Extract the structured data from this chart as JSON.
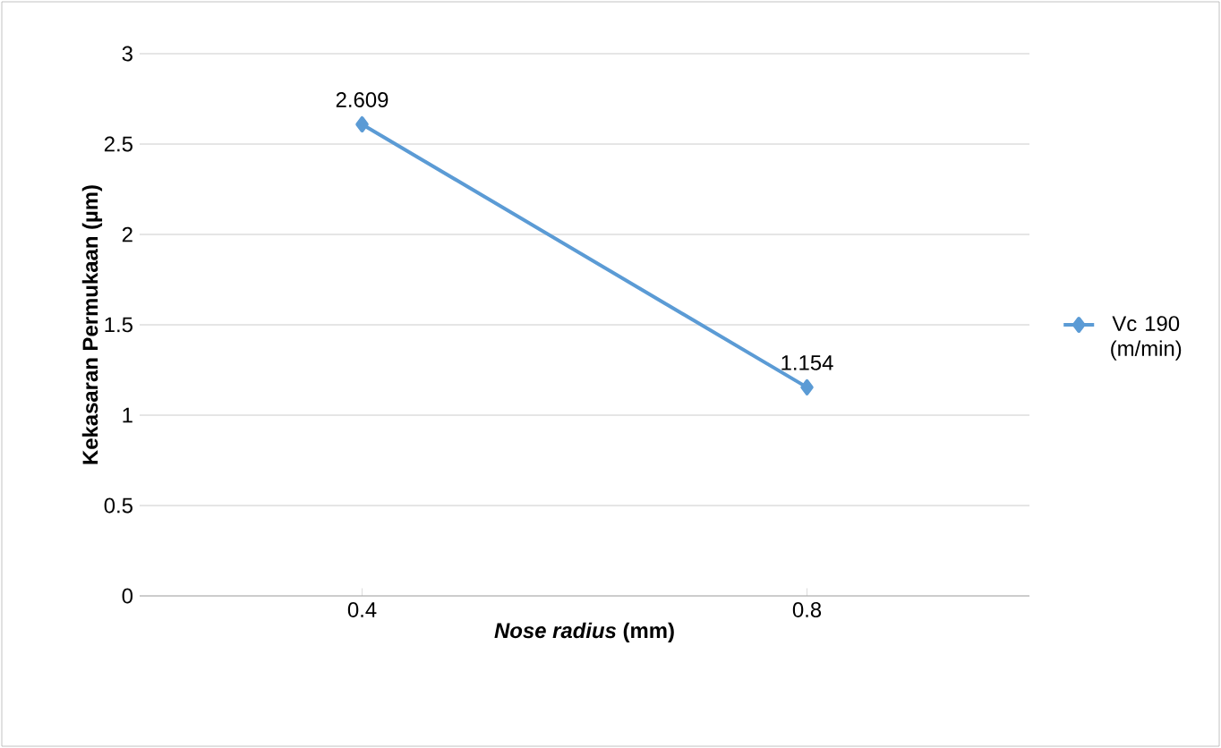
{
  "chart_data": {
    "type": "line",
    "xlabel": "*Nose radius* (mm)",
    "ylabel": "Kekasaran Permukaan (µm)",
    "categories": [
      "0.4",
      "0.8"
    ],
    "series": [
      {
        "name": "Vc 190 (m/min)",
        "color": "#5b9bd5",
        "values": [
          2.609,
          1.154
        ]
      }
    ],
    "ylim": [
      0,
      3
    ],
    "yticks": [
      0,
      0.5,
      1,
      1.5,
      2,
      2.5,
      3
    ],
    "grid": "y",
    "legend": "right",
    "marker": "diamond",
    "line_style": "solid",
    "data_labels": true
  }
}
